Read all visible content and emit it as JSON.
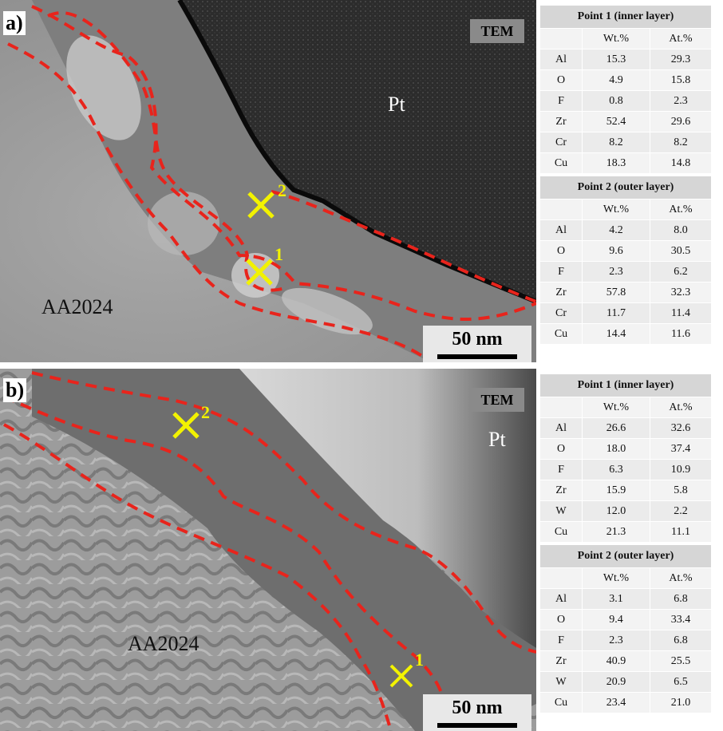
{
  "panels": [
    {
      "label": "a)",
      "tem": "TEM",
      "pt": "Pt",
      "substrate": "AA2024",
      "marker1": "1",
      "marker2": "2",
      "scale": "50 nm",
      "tables": [
        {
          "title": "Point 1 (inner layer)",
          "col1": "Wt.%",
          "col2": "At.%",
          "rows": [
            [
              "Al",
              "15.3",
              "29.3"
            ],
            [
              "O",
              "4.9",
              "15.8"
            ],
            [
              "F",
              "0.8",
              "2.3"
            ],
            [
              "Zr",
              "52.4",
              "29.6"
            ],
            [
              "Cr",
              "8.2",
              "8.2"
            ],
            [
              "Cu",
              "18.3",
              "14.8"
            ]
          ]
        },
        {
          "title": "Point 2 (outer layer)",
          "col1": "Wt.%",
          "col2": "At.%",
          "rows": [
            [
              "Al",
              "4.2",
              "8.0"
            ],
            [
              "O",
              "9.6",
              "30.5"
            ],
            [
              "F",
              "2.3",
              "6.2"
            ],
            [
              "Zr",
              "57.8",
              "32.3"
            ],
            [
              "Cr",
              "11.7",
              "11.4"
            ],
            [
              "Cu",
              "14.4",
              "11.6"
            ]
          ]
        }
      ]
    },
    {
      "label": "b)",
      "tem": "TEM",
      "pt": "Pt",
      "substrate": "AA2024",
      "marker1": "1",
      "marker2": "2",
      "scale": "50 nm",
      "tables": [
        {
          "title": "Point 1 (inner layer)",
          "col1": "Wt.%",
          "col2": "At.%",
          "rows": [
            [
              "Al",
              "26.6",
              "32.6"
            ],
            [
              "O",
              "18.0",
              "37.4"
            ],
            [
              "F",
              "6.3",
              "10.9"
            ],
            [
              "Zr",
              "15.9",
              "5.8"
            ],
            [
              "W",
              "12.0",
              "2.2"
            ],
            [
              "Cu",
              "21.3",
              "11.1"
            ]
          ]
        },
        {
          "title": "Point 2 (outer layer)",
          "col1": "Wt.%",
          "col2": "At.%",
          "rows": [
            [
              "Al",
              "3.1",
              "6.8"
            ],
            [
              "O",
              "9.4",
              "33.4"
            ],
            [
              "F",
              "2.3",
              "6.8"
            ],
            [
              "Zr",
              "40.9",
              "25.5"
            ],
            [
              "W",
              "20.9",
              "6.5"
            ],
            [
              "Cu",
              "23.4",
              "21.0"
            ]
          ]
        }
      ]
    }
  ],
  "colors": {
    "boundary": "#e8241c",
    "marker": "#f2f200",
    "platinum": "#2a2a2a"
  }
}
